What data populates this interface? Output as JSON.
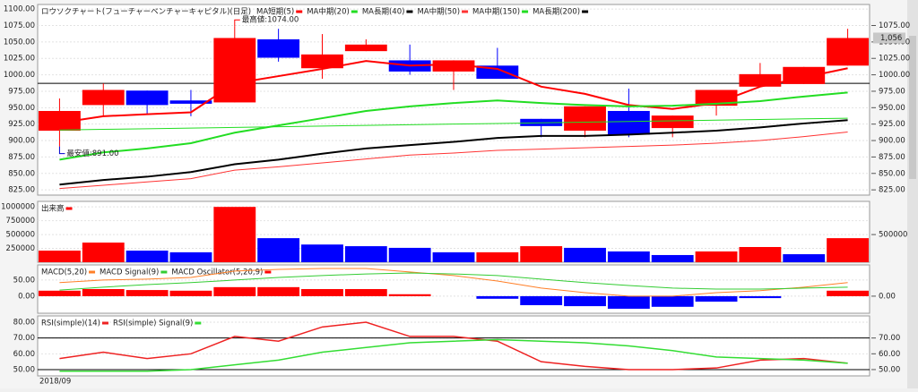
{
  "chart_data": [
    {
      "type": "candlestick",
      "title": "ロウソクチャート(フューチャーベンチャーキャピタル)(日足)",
      "categories": [
        "2018/09",
        null,
        null,
        null,
        null,
        null,
        null,
        null,
        null,
        null,
        null,
        null,
        null,
        null,
        null,
        null,
        null,
        null,
        null
      ],
      "open": [
        915,
        954,
        976,
        961,
        958,
        1054,
        1010,
        1036,
        1022,
        1005,
        1014,
        933,
        915,
        945,
        919,
        953,
        982,
        986,
        1014
      ],
      "close": [
        945,
        977,
        954,
        956,
        1056,
        1026,
        1031,
        1046,
        1005,
        1022,
        994,
        922,
        952,
        909,
        938,
        977,
        1001,
        1012,
        1056
      ],
      "high": [
        964,
        987,
        976,
        977,
        1074,
        1070,
        1062,
        1054,
        1046,
        1022,
        1041,
        933,
        952,
        979,
        938,
        977,
        1018,
        1012,
        1070
      ],
      "low": [
        891,
        937,
        940,
        937,
        958,
        1020,
        994,
        1036,
        1000,
        977,
        994,
        905,
        905,
        905,
        905,
        938,
        982,
        986,
        1014
      ],
      "up_color": "#ff0000",
      "down_color": "#0000ff",
      "series": [
        {
          "name": "MA短期(5)",
          "color": "#ff0000",
          "line_width": 2,
          "values": [
            927,
            937,
            940,
            943,
            987,
            998,
            1009,
            1021,
            1014,
            1016,
            1009,
            982,
            971,
            954,
            948,
            957,
            982,
            996,
            1010
          ]
        },
        {
          "name": "MA中期(20)",
          "color": "#22dd22",
          "line_width": 2,
          "values": [
            871,
            882,
            888,
            896,
            912,
            923,
            934,
            945,
            952,
            957,
            961,
            957,
            954,
            952,
            953,
            956,
            960,
            967,
            973
          ]
        },
        {
          "name": "MA長期(40)",
          "color": "#000000",
          "line_width": 2,
          "values": [
            833,
            840,
            845,
            852,
            864,
            871,
            880,
            888,
            893,
            898,
            904,
            907,
            907,
            909,
            912,
            915,
            920,
            926,
            931
          ]
        },
        {
          "name": "MA中期(50)",
          "color": "#ff3333",
          "line_width": 1,
          "values": [
            827,
            832,
            837,
            842,
            855,
            860,
            866,
            872,
            878,
            881,
            885,
            887,
            889,
            891,
            893,
            896,
            900,
            906,
            913
          ]
        },
        {
          "name": "MA中期(150)",
          "color": "#22dd22",
          "line_width": 1,
          "values": [
            916,
            917,
            918,
            919,
            920,
            921,
            922,
            923,
            924,
            925,
            926,
            927,
            928,
            929,
            930,
            931,
            932,
            933,
            934
          ]
        },
        {
          "name": "MA長期(200)",
          "color": "#000000",
          "line_width": 1,
          "values": [
            null,
            null,
            null,
            null,
            null,
            null,
            null,
            null,
            null,
            null,
            null,
            null,
            null,
            null,
            null,
            null,
            null,
            null,
            null
          ]
        }
      ],
      "hlines": [
        987
      ],
      "annotations": [
        {
          "text": "最高値:1074.00",
          "value": 1074,
          "color": "#ff0000"
        },
        {
          "text": "最安値:891.00",
          "value": 891,
          "color": "#0000cc"
        }
      ],
      "last_price": {
        "value": 1056,
        "label": "1,056"
      },
      "ylim": [
        817,
        1107
      ],
      "yticks": [
        {
          "value": 825,
          "label": "825.00"
        },
        {
          "value": 850,
          "label": "850.00"
        },
        {
          "value": 875,
          "label": "875.00"
        },
        {
          "value": 900,
          "label": "900.00"
        },
        {
          "value": 925,
          "label": "925.00"
        },
        {
          "value": 950,
          "label": "950.00"
        },
        {
          "value": 975,
          "label": "975.00"
        },
        {
          "value": 1000,
          "label": "1000.00"
        },
        {
          "value": 1025,
          "label": "1025.00"
        },
        {
          "value": 1050,
          "label": "1050.00"
        },
        {
          "value": 1075,
          "label": "1075.00"
        },
        {
          "value": 1100,
          "label": "1100.00"
        }
      ],
      "y2ticks": [
        {
          "value": 825,
          "label": "825.00"
        },
        {
          "value": 850,
          "label": "850.00"
        },
        {
          "value": 875,
          "label": "875.00"
        },
        {
          "value": 900,
          "label": "900.00"
        },
        {
          "value": 925,
          "label": "925.00"
        },
        {
          "value": 950,
          "label": "950.00"
        },
        {
          "value": 975,
          "label": "975.00"
        },
        {
          "value": 1000,
          "label": "1000.00"
        },
        {
          "value": 1025,
          "label": "1025.00"
        },
        {
          "value": 1050,
          "label": "1050.00"
        },
        {
          "value": 1075,
          "label": "1075.00"
        }
      ],
      "grid": true
    },
    {
      "type": "bar",
      "series": [
        {
          "name": "出来高",
          "type": "bar",
          "color": "#ff0000",
          "colors": [
            "#ff0000",
            "#ff0000",
            "#0000ff",
            "#0000ff",
            "#ff0000",
            "#0000ff",
            "#0000ff",
            "#0000ff",
            "#0000ff",
            "#0000ff",
            "#ff0000",
            "#ff0000",
            "#0000ff",
            "#0000ff",
            "#0000ff",
            "#ff0000",
            "#ff0000",
            "#0000ff",
            "#ff0000"
          ],
          "values": [
            210000,
            355000,
            210000,
            180000,
            1000000,
            435000,
            320000,
            290000,
            260000,
            180000,
            180000,
            290000,
            260000,
            195000,
            130000,
            195000,
            275000,
            145000,
            435000
          ]
        }
      ],
      "ylim": [
        0,
        1100000
      ],
      "yticks": [
        250000,
        500000,
        750000,
        1000000
      ],
      "y2ticks": [
        500000
      ],
      "grid": true
    },
    {
      "type": "combo",
      "series": [
        {
          "name": "MACD(5,20)",
          "color": "#ff7f27",
          "line_width": 1,
          "values": [
            42,
            50,
            53,
            58,
            78,
            83,
            86,
            86,
            75,
            64,
            47,
            25,
            11,
            0,
            0,
            11,
            17,
            28,
            42
          ]
        },
        {
          "name": "MACD Signal(9)",
          "color": "#33cc33",
          "line_width": 1,
          "values": [
            19,
            28,
            36,
            42,
            50,
            58,
            64,
            69,
            72,
            69,
            64,
            53,
            42,
            33,
            25,
            22,
            22,
            25,
            28
          ]
        },
        {
          "name": "MACD Oscillator(5,20,9)",
          "type": "bar",
          "color": "#ff0000",
          "colors": [
            "#ff0000",
            "#ff0000",
            "#ff0000",
            "#ff0000",
            "#ff0000",
            "#ff0000",
            "#ff0000",
            "#ff0000",
            "#ff0000",
            "#ff0000",
            "#0000ff",
            "#0000ff",
            "#0000ff",
            "#0000ff",
            "#0000ff",
            "#0000ff",
            "#0000ff",
            "#0000ff",
            "#ff0000"
          ],
          "values": [
            17,
            22,
            19,
            17,
            28,
            28,
            22,
            22,
            6,
            0,
            -8,
            -28,
            -31,
            -39,
            -33,
            -17,
            -6,
            0,
            17
          ]
        }
      ],
      "ylim": [
        -53,
        97
      ],
      "yticks": [
        {
          "value": 0,
          "label": "0.00"
        },
        {
          "value": 50,
          "label": "50.00"
        }
      ],
      "y2ticks": [
        {
          "value": 0,
          "label": "0.00"
        }
      ],
      "grid": true
    },
    {
      "type": "line",
      "series": [
        {
          "name": "RSI(simple)(14)",
          "color": "#ee2222",
          "line_width": 1.5,
          "values": [
            57,
            61,
            57,
            60,
            71,
            68,
            77,
            80,
            71,
            71,
            68,
            55,
            52,
            50,
            50,
            51,
            56,
            57,
            54
          ]
        },
        {
          "name": "RSI(simple) Signal(9)",
          "color": "#33dd33",
          "line_width": 1.5,
          "values": [
            49,
            49,
            49,
            50,
            53,
            56,
            61,
            64,
            67,
            68,
            69,
            68,
            67,
            65,
            62,
            58,
            57,
            56,
            54
          ]
        }
      ],
      "hlines": [
        70,
        50
      ],
      "ylim": [
        46,
        84
      ],
      "yticks": [
        {
          "value": 50,
          "label": "50.00"
        },
        {
          "value": 60,
          "label": "60.00"
        },
        {
          "value": 70,
          "label": "70.00"
        },
        {
          "value": 80,
          "label": "80.00"
        }
      ],
      "y2ticks": [
        {
          "value": 50,
          "label": "50.00"
        },
        {
          "value": 60,
          "label": "60.00"
        },
        {
          "value": 70,
          "label": "70.00"
        }
      ],
      "grid": true
    }
  ]
}
